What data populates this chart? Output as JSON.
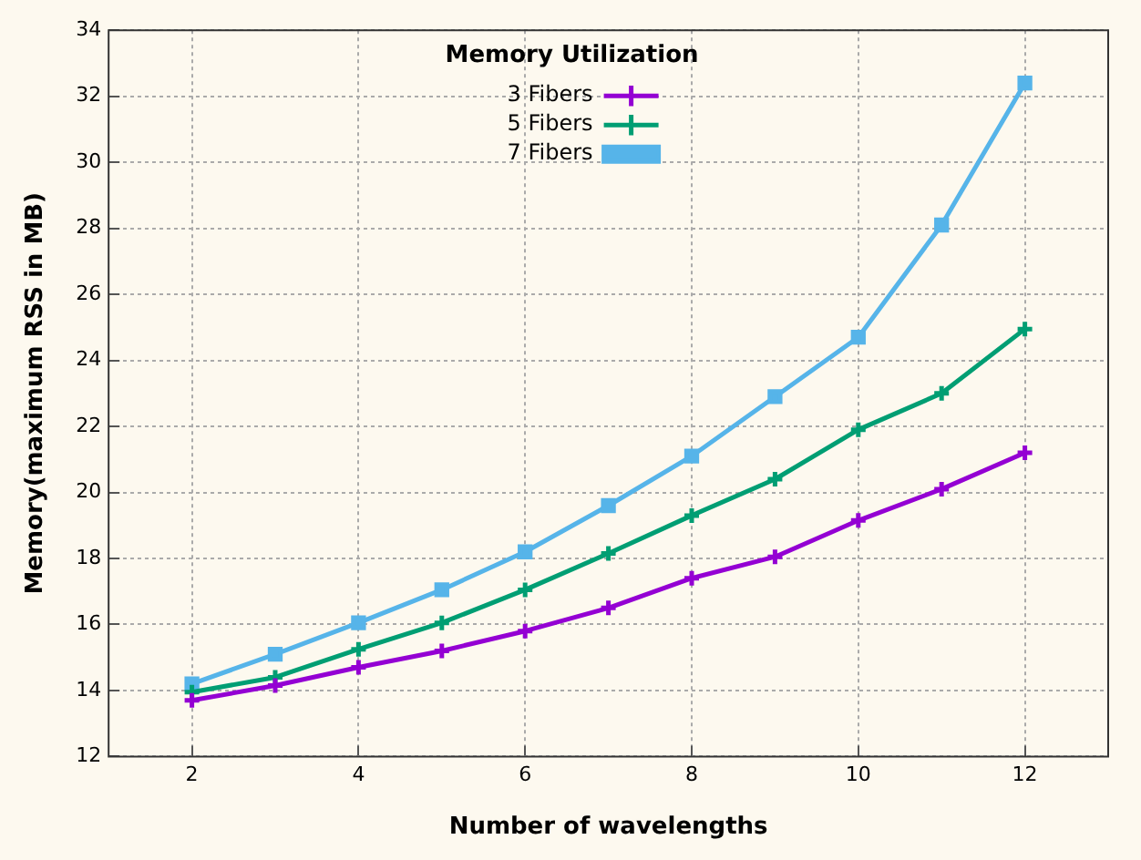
{
  "chart_data": {
    "type": "line",
    "legend_title": "Memory Utilization",
    "xlabel": "Number of wavelengths",
    "ylabel": "Memory(maximum RSS in MB)",
    "x": [
      2,
      3,
      4,
      5,
      6,
      7,
      8,
      9,
      10,
      11,
      12
    ],
    "series": [
      {
        "name": "3 Fibers",
        "color": "#9400d3",
        "marker": "cross",
        "values": [
          13.7,
          14.15,
          14.7,
          15.2,
          15.8,
          16.5,
          17.4,
          18.05,
          19.15,
          20.1,
          21.2
        ]
      },
      {
        "name": "5 Fibers",
        "color": "#009e73",
        "marker": "cross",
        "values": [
          13.95,
          14.4,
          15.25,
          16.05,
          17.05,
          18.15,
          19.3,
          20.4,
          21.9,
          23.0,
          24.95
        ]
      },
      {
        "name": "7 Fibers",
        "color": "#56b4e9",
        "marker": "square",
        "values": [
          14.2,
          15.1,
          16.05,
          17.05,
          18.2,
          19.6,
          21.1,
          22.9,
          24.7,
          28.1,
          32.4
        ]
      }
    ],
    "xlim": [
      1,
      13
    ],
    "xticks": [
      2,
      4,
      6,
      8,
      10,
      12
    ],
    "ylim": [
      12,
      34
    ],
    "yticks": [
      12,
      14,
      16,
      18,
      20,
      22,
      24,
      26,
      28,
      30,
      32,
      34
    ],
    "grid": true,
    "legend": "top",
    "line_style": "solid"
  }
}
